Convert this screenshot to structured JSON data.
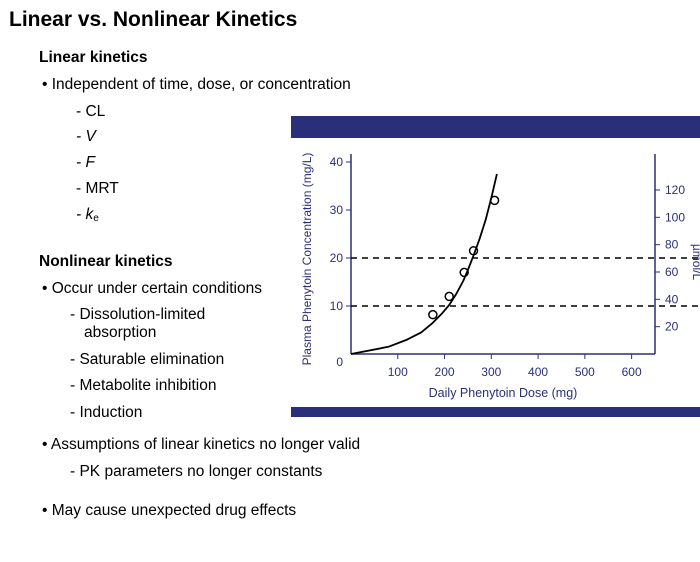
{
  "slide": {
    "title": "Linear vs. Nonlinear Kinetics",
    "linear_heading": "Linear kinetics",
    "linear_bullet": "• Independent of time, dose, or concentration",
    "linear_items": [
      "- CL",
      "- V",
      "- F",
      "- MRT",
      "- k"
    ],
    "ke_subscript": "e",
    "nonlinear_heading": "Nonlinear kinetics",
    "nonlinear_bullet": "• Occur under certain conditions",
    "nonlinear_items": [
      "- Dissolution-limited",
      "absorption",
      "- Saturable elimination",
      "- Metabolite inhibition",
      "- Induction"
    ],
    "assumptions_bullet": "• Assumptions of linear kinetics no longer valid",
    "assumptions_sub": "- PK parameters no longer constants",
    "effects_bullet": "• May cause unexpected drug effects"
  },
  "colors": {
    "navy": "#2a2f7a",
    "axis_text": "#2a2f7a",
    "curve": "#000000"
  },
  "chart_data": {
    "type": "line",
    "xlabel": "Daily Phenytoin Dose (mg)",
    "ylabel": "Plasma Phenytoin Concentration (mg/L)",
    "y2label": "µmol/L",
    "xlim": [
      0,
      650
    ],
    "ylim": [
      0,
      42
    ],
    "x_ticks": [
      100,
      200,
      300,
      400,
      500,
      600
    ],
    "y_ticks": [
      0,
      10,
      20,
      30,
      40
    ],
    "y2_ticks": [
      20,
      40,
      60,
      80,
      100,
      120
    ],
    "curve": {
      "x": [
        0,
        80,
        120,
        150,
        175,
        195,
        210,
        225,
        240,
        250,
        262,
        275,
        288,
        300,
        312
      ],
      "y": [
        0,
        1.5,
        3,
        4.5,
        6.5,
        8.5,
        10.2,
        12.5,
        15.2,
        17.5,
        20.5,
        24,
        28,
        32.5,
        37.5
      ]
    },
    "points": [
      {
        "x": 175,
        "y": 8.2
      },
      {
        "x": 210,
        "y": 12.0
      },
      {
        "x": 242,
        "y": 17.0
      },
      {
        "x": 262,
        "y": 21.5
      },
      {
        "x": 307,
        "y": 32.0
      }
    ],
    "reference_lines": [
      10,
      20
    ]
  }
}
